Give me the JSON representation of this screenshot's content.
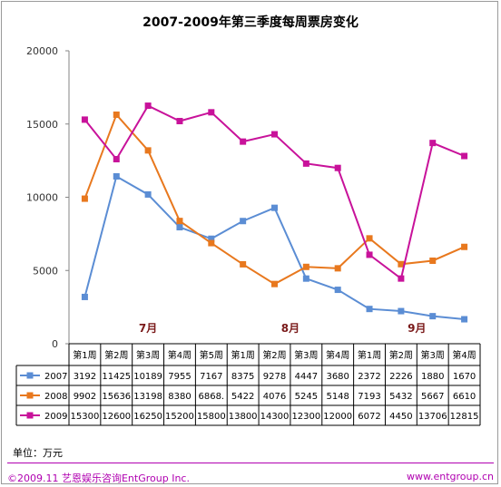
{
  "chart_data": {
    "type": "line",
    "title": "2007-2009年第三季度每周票房变化",
    "xlabel": "",
    "ylabel": "",
    "ylim": [
      0,
      20000
    ],
    "yticks": [
      "0",
      "5000",
      "10000",
      "15000",
      "20000"
    ],
    "grid": false,
    "legend": "table-left",
    "categories": [
      "第1周",
      "第2周",
      "第3周",
      "第4周",
      "第5周",
      "第1周",
      "第2周",
      "第3周",
      "第4周",
      "第1周",
      "第2周",
      "第3周",
      "第4周"
    ],
    "months": [
      {
        "label": "7月",
        "start": 0,
        "end": 4
      },
      {
        "label": "8月",
        "start": 5,
        "end": 8
      },
      {
        "label": "9月",
        "start": 9,
        "end": 12
      }
    ],
    "series": [
      {
        "name": "2007",
        "color": "#5b8dd4",
        "values": [
          3192,
          11425,
          10189,
          7955,
          7167,
          8375,
          9278,
          4447,
          3680,
          2372,
          2226,
          1880,
          1670
        ],
        "labels": [
          "3192",
          "11425",
          "10189",
          "7955",
          "7167",
          "8375",
          "9278",
          "4447",
          "3680",
          "2372",
          "2226",
          "1880",
          "1670"
        ]
      },
      {
        "name": "2008",
        "color": "#e8781e",
        "values": [
          9902,
          15636,
          13198,
          8380,
          6868,
          5422,
          4076,
          5245,
          5148,
          7193,
          5432,
          5667,
          6610
        ],
        "labels": [
          "9902",
          "15636",
          "13198",
          "8380",
          "6868.",
          "5422",
          "4076",
          "5245",
          "5148",
          "7193",
          "5432",
          "5667",
          "6610"
        ]
      },
      {
        "name": "2009",
        "color": "#c8129a",
        "values": [
          15300,
          12600,
          16250,
          15200,
          15800,
          13800,
          14300,
          12300,
          12000,
          6072,
          4450,
          13706,
          12815
        ],
        "labels": [
          "15300",
          "12600",
          "16250",
          "15200",
          "15800",
          "13800",
          "14300",
          "12300",
          "12000",
          "6072",
          "4450",
          "13706",
          "12815"
        ]
      }
    ]
  },
  "footer": {
    "unit": "单位：万元",
    "copyright": "©2009.11 艺恩娱乐咨询EntGroup Inc.",
    "website": "www.entgroup.cn"
  }
}
